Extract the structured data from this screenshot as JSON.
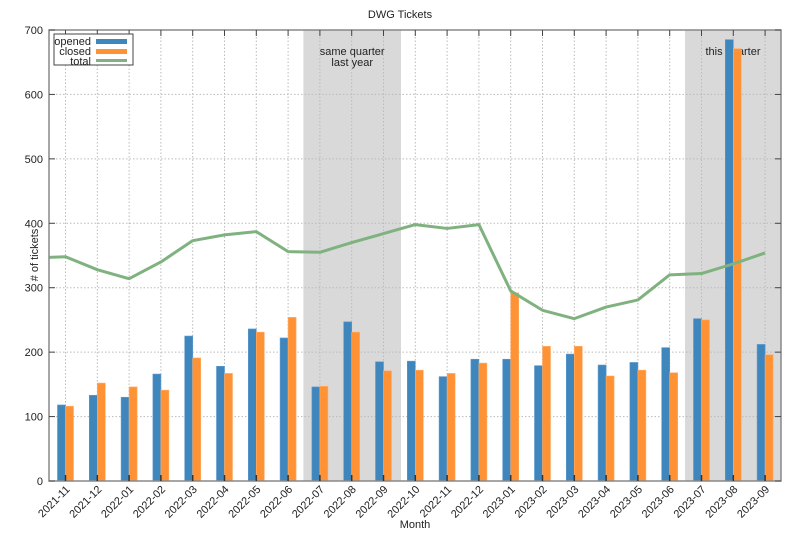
{
  "chart_data": {
    "type": "bar",
    "title": "DWG Tickets",
    "xlabel": "Month",
    "ylabel": "# of tickets",
    "ylim": [
      0,
      700
    ],
    "yticks": [
      0,
      100,
      200,
      300,
      400,
      500,
      600,
      700
    ],
    "grid": true,
    "legend_position": "upper left",
    "categories": [
      "2021-11",
      "2021-12",
      "2022-01",
      "2022-02",
      "2022-03",
      "2022-04",
      "2022-05",
      "2022-06",
      "2022-07",
      "2022-08",
      "2022-09",
      "2022-10",
      "2022-11",
      "2022-12",
      "2023-01",
      "2023-02",
      "2023-03",
      "2023-04",
      "2023-05",
      "2023-06",
      "2023-07",
      "2023-08",
      "2023-09"
    ],
    "series": [
      {
        "name": "opened",
        "type": "bar",
        "color": "#3f86bc",
        "values": [
          118,
          133,
          130,
          166,
          225,
          178,
          236,
          222,
          146,
          247,
          185,
          186,
          162,
          189,
          189,
          179,
          197,
          180,
          184,
          207,
          252,
          685,
          212
        ]
      },
      {
        "name": "closed",
        "type": "bar",
        "color": "#ff9234",
        "values": [
          116,
          152,
          146,
          141,
          191,
          167,
          231,
          254,
          147,
          231,
          171,
          172,
          167,
          183,
          292,
          209,
          209,
          163,
          172,
          168,
          250,
          671,
          196
        ]
      },
      {
        "name": "total",
        "type": "line",
        "color": "#7fb27f",
        "values": [
          348,
          328,
          314,
          340,
          373,
          382,
          387,
          356,
          355,
          370,
          384,
          398,
          392,
          398,
          295,
          265,
          252,
          270,
          281,
          320,
          322,
          337,
          354
        ]
      }
    ],
    "shaded_regions": [
      {
        "label": "same quarter\nlast year",
        "label_lines": [
          "same quarter",
          "last year"
        ],
        "from": "2022-07",
        "to": "2022-09"
      },
      {
        "label": "this quarter",
        "label_lines": [
          "this quarter"
        ],
        "from": "2023-07",
        "to": "2023-09"
      }
    ],
    "initial_total": 347
  }
}
